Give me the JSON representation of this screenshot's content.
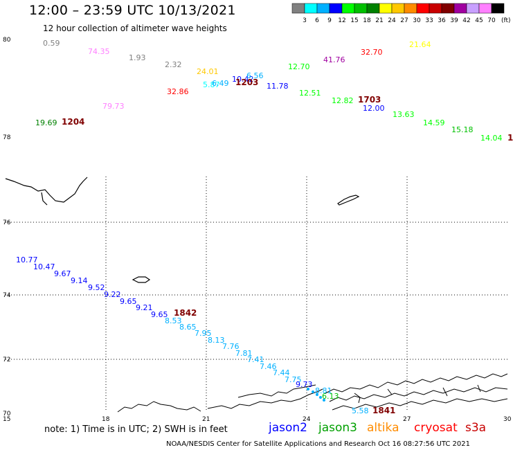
{
  "header": {
    "title": "12:00 – 23:59 UTC 10/13/2021",
    "subtitle": "12 hour collection of altimeter wave heights"
  },
  "scale": {
    "unit": "(ft)",
    "bins": [
      {
        "label": "3",
        "color": "#808080"
      },
      {
        "label": "6",
        "color": "#00ffff"
      },
      {
        "label": "9",
        "color": "#00b0ff"
      },
      {
        "label": "12",
        "color": "#0000ff"
      },
      {
        "label": "15",
        "color": "#00ff00"
      },
      {
        "label": "18",
        "color": "#00c000"
      },
      {
        "label": "21",
        "color": "#008000"
      },
      {
        "label": "24",
        "color": "#ffff00"
      },
      {
        "label": "27",
        "color": "#ffc800"
      },
      {
        "label": "30",
        "color": "#ff8c00"
      },
      {
        "label": "33",
        "color": "#ff0000"
      },
      {
        "label": "36",
        "color": "#c80000"
      },
      {
        "label": "39",
        "color": "#800000"
      },
      {
        "label": "42",
        "color": "#a000a0"
      },
      {
        "label": "45",
        "color": "#c8a0ff"
      },
      {
        "label": "70",
        "color": "#ff80ff"
      },
      {
        "label": "",
        "color": "#000000"
      }
    ]
  },
  "axes": {
    "x_ticks": [
      "15",
      "18",
      "21",
      "24",
      "27",
      "30"
    ],
    "y_ticks_upper": [
      "80",
      "78"
    ],
    "y_ticks_lower": [
      "76",
      "74",
      "72",
      "70"
    ]
  },
  "labels": [
    {
      "text": "0.59",
      "color": "#808080"
    },
    {
      "text": "74.35",
      "color": "#ff80ff"
    },
    {
      "text": "1.93",
      "color": "#808080"
    },
    {
      "text": "2.32",
      "color": "#808080"
    },
    {
      "text": "24.01",
      "color": "#ffc800"
    },
    {
      "text": "5.87",
      "color": "#00ffff"
    },
    {
      "text": "6.49",
      "color": "#00b0ff"
    },
    {
      "text": "10.42",
      "color": "#0000ff"
    },
    {
      "text": "6.56",
      "color": "#00b0ff"
    },
    {
      "text": "11.78",
      "color": "#0000ff"
    },
    {
      "text": "12.70",
      "color": "#00ff00"
    },
    {
      "text": "41.76",
      "color": "#a000a0"
    },
    {
      "text": "32.70",
      "color": "#ff0000"
    },
    {
      "text": "21.64",
      "color": "#ffff00"
    },
    {
      "text": "32.86",
      "color": "#ff0000"
    },
    {
      "text": "79.73",
      "color": "#ff80ff"
    },
    {
      "text": "12.51",
      "color": "#00ff00"
    },
    {
      "text": "12.82",
      "color": "#00ff00"
    },
    {
      "text": "12.00",
      "color": "#0000ff"
    },
    {
      "text": "13.63",
      "color": "#00ff00"
    },
    {
      "text": "14.59",
      "color": "#00ff00"
    },
    {
      "text": "15.18",
      "color": "#00c000"
    },
    {
      "text": "14.04",
      "color": "#00ff00"
    },
    {
      "text": "19.69",
      "color": "#008000"
    },
    {
      "text": "10.77",
      "color": "#0000ff"
    },
    {
      "text": "10.47",
      "color": "#0000ff"
    },
    {
      "text": "9.67",
      "color": "#0000ff"
    },
    {
      "text": "9.14",
      "color": "#0000ff"
    },
    {
      "text": "9.52",
      "color": "#0000ff"
    },
    {
      "text": "9.22",
      "color": "#0000ff"
    },
    {
      "text": "9.65",
      "color": "#0000ff"
    },
    {
      "text": "9.21",
      "color": "#0000ff"
    },
    {
      "text": "9.65",
      "color": "#0000ff"
    },
    {
      "text": "8.53",
      "color": "#00b0ff"
    },
    {
      "text": "8.65",
      "color": "#00b0ff"
    },
    {
      "text": "7.95",
      "color": "#00b0ff"
    },
    {
      "text": "8.13",
      "color": "#00b0ff"
    },
    {
      "text": "7.76",
      "color": "#00b0ff"
    },
    {
      "text": "7.81",
      "color": "#00b0ff"
    },
    {
      "text": "7.41",
      "color": "#00b0ff"
    },
    {
      "text": "7.46",
      "color": "#00b0ff"
    },
    {
      "text": "7.44",
      "color": "#00b0ff"
    },
    {
      "text": "7.75",
      "color": "#00b0ff"
    },
    {
      "text": "9.73",
      "color": "#0000ff"
    },
    {
      "text": "8.81",
      "color": "#00b0ff"
    },
    {
      "text": "6.13",
      "color": "#00c000"
    },
    {
      "text": "5.58",
      "color": "#00b0ff"
    }
  ],
  "pass_labels": [
    {
      "text": "1203",
      "color": "#800000"
    },
    {
      "text": "1204",
      "color": "#800000"
    },
    {
      "text": "1703",
      "color": "#800000"
    },
    {
      "text": "1842",
      "color": "#800000"
    },
    {
      "text": "1841",
      "color": "#800000"
    },
    {
      "text": "1",
      "color": "#800000"
    }
  ],
  "footer": {
    "note": "note:  1) Time is in UTC;  2) SWH is in feet",
    "satellites": [
      {
        "name": "jason2",
        "color": "#0000ff"
      },
      {
        "name": "jason3",
        "color": "#00a000"
      },
      {
        "name": "altika",
        "color": "#ff8c00"
      },
      {
        "name": "cryosat",
        "color": "#ff0000"
      },
      {
        "name": "s3a",
        "color": "#c80000"
      }
    ],
    "credit": "NOAA/NESDIS Center for Satellite Applications and Research    Oct 16 08:27:56 UTC 2021"
  }
}
